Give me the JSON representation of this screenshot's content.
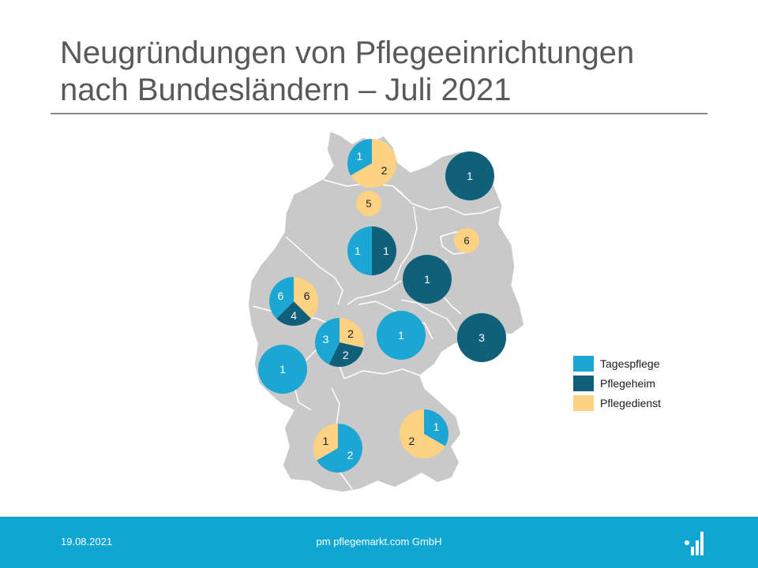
{
  "title": {
    "line1": "Neugründungen von Pflegeeinrichtungen",
    "line2": "nach Bundesländern – Juli 2021"
  },
  "colors": {
    "tagespflege": "#1ba6d3",
    "pflegeheim": "#11607a",
    "pflegedienst": "#fdd283",
    "map_fill": "#c9c9c9",
    "map_border": "#ffffff",
    "footer": "#0fa6d3"
  },
  "legend": [
    {
      "label": "Tagespflege",
      "key": "tagespflege"
    },
    {
      "label": "Pflegeheim",
      "key": "pflegeheim"
    },
    {
      "label": "Pflegedienst",
      "key": "pflegedienst"
    }
  ],
  "states": [
    {
      "id": "schleswig-holstein",
      "counts": {
        "tagespflege": 1,
        "pflegeheim": 0,
        "pflegedienst": 2
      }
    },
    {
      "id": "hamburg",
      "counts": {
        "tagespflege": 0,
        "pflegeheim": 0,
        "pflegedienst": 5
      }
    },
    {
      "id": "mecklenburg-vorpommern",
      "counts": {
        "tagespflege": 0,
        "pflegeheim": 1,
        "pflegedienst": 0
      }
    },
    {
      "id": "berlin",
      "counts": {
        "tagespflege": 0,
        "pflegeheim": 0,
        "pflegedienst": 6
      }
    },
    {
      "id": "niedersachsen",
      "counts": {
        "tagespflege": 1,
        "pflegeheim": 1,
        "pflegedienst": 0
      }
    },
    {
      "id": "sachsen-anhalt",
      "counts": {
        "tagespflege": 0,
        "pflegeheim": 1,
        "pflegedienst": 0
      }
    },
    {
      "id": "nordrhein-westfalen",
      "counts": {
        "tagespflege": 6,
        "pflegeheim": 4,
        "pflegedienst": 6
      }
    },
    {
      "id": "hessen",
      "counts": {
        "tagespflege": 3,
        "pflegeheim": 2,
        "pflegedienst": 2
      }
    },
    {
      "id": "thueringen",
      "counts": {
        "tagespflege": 1,
        "pflegeheim": 0,
        "pflegedienst": 0
      }
    },
    {
      "id": "sachsen",
      "counts": {
        "tagespflege": 0,
        "pflegeheim": 3,
        "pflegedienst": 0
      }
    },
    {
      "id": "rheinland-pfalz",
      "counts": {
        "tagespflege": 1,
        "pflegeheim": 0,
        "pflegedienst": 0
      }
    },
    {
      "id": "baden-wuerttemberg",
      "counts": {
        "tagespflege": 2,
        "pflegeheim": 0,
        "pflegedienst": 1
      }
    },
    {
      "id": "bayern",
      "counts": {
        "tagespflege": 1,
        "pflegeheim": 0,
        "pflegedienst": 2
      }
    }
  ],
  "footer": {
    "date": "19.08.2021",
    "company": "pm pflegemarkt.com GmbH"
  }
}
